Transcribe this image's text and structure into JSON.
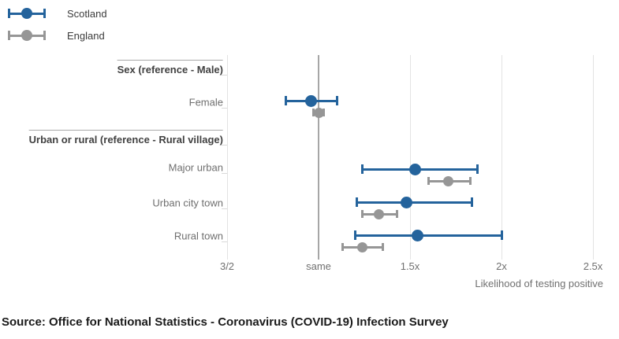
{
  "legend": {
    "items": [
      {
        "name": "Scotland"
      },
      {
        "name": "England"
      }
    ]
  },
  "chart_data": {
    "type": "dot-interval",
    "title": "",
    "xlabel": "Likelihood of testing positive",
    "x_axis": {
      "range": [
        0.5,
        2.5
      ],
      "reference_value": 1.0,
      "reference_label": "same",
      "ticks": [
        {
          "label": "3/2",
          "value": 0.5
        },
        {
          "label": "same",
          "value": 1.0
        },
        {
          "label": "1.5x",
          "value": 1.5
        },
        {
          "label": "2x",
          "value": 2.0
        },
        {
          "label": "2.5x",
          "value": 2.5
        }
      ]
    },
    "series_names": [
      "Scotland",
      "England"
    ],
    "groups": [
      {
        "header": "Sex (reference - Male)",
        "rows": [
          {
            "label": "Female",
            "series": [
              {
                "name": "Scotland",
                "low": 0.82,
                "mid": 0.96,
                "high": 1.1
              },
              {
                "name": "England",
                "low": 0.97,
                "mid": 1.0,
                "high": 1.03
              }
            ]
          }
        ]
      },
      {
        "header": "Urban or rural (reference - Rural village)",
        "rows": [
          {
            "label": "Major urban",
            "series": [
              {
                "name": "Scotland",
                "low": 1.24,
                "mid": 1.53,
                "high": 1.87
              },
              {
                "name": "England",
                "low": 1.6,
                "mid": 1.71,
                "high": 1.83
              }
            ]
          },
          {
            "label": "Urban city town",
            "series": [
              {
                "name": "Scotland",
                "low": 1.21,
                "mid": 1.48,
                "high": 1.84
              },
              {
                "name": "England",
                "low": 1.24,
                "mid": 1.33,
                "high": 1.43
              }
            ]
          },
          {
            "label": "Rural town",
            "series": [
              {
                "name": "Scotland",
                "low": 1.2,
                "mid": 1.54,
                "high": 2.0
              },
              {
                "name": "England",
                "low": 1.13,
                "mid": 1.24,
                "high": 1.35
              }
            ]
          }
        ]
      }
    ]
  },
  "source": "Source: Office for National Statistics - Coronavirus (COVID-19) Infection Survey",
  "colors": {
    "scotland": "#24639c",
    "england": "#969696",
    "reference_line": "#a6a6a6",
    "gridline": "#e3e3e3",
    "header_rule": "#a9a9a9",
    "label_text": "#6f6f6f",
    "header_text": "#414141",
    "tick_label_text": "#707070",
    "source_text": "#1a1a1a"
  }
}
